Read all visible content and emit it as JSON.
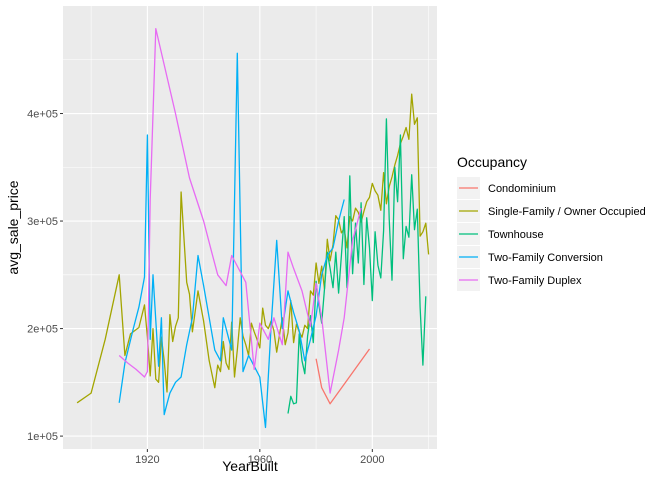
{
  "chart_data": {
    "type": "line",
    "xlabel": "YearBuilt",
    "ylabel": "avg_sale_price",
    "xlim": [
      1890,
      2023
    ],
    "ylim": [
      88000,
      500000
    ],
    "x_ticks": [
      1920,
      1960,
      2000
    ],
    "x_tick_labels": [
      "1920",
      "1960",
      "2000"
    ],
    "y_ticks": [
      100000,
      200000,
      300000,
      400000
    ],
    "y_tick_labels": [
      "1e+05",
      "2e+05",
      "3e+05",
      "4e+05"
    ],
    "grid": true,
    "legend_title": "Occupancy",
    "legend_position": "right",
    "series": [
      {
        "name": "Condominium",
        "color": "#F8766D",
        "x": [
          1980,
          1982,
          1985,
          1999
        ],
        "y": [
          172000,
          145000,
          130000,
          181000
        ]
      },
      {
        "name": "Single-Family / Owner Occupied",
        "color": "#A3A500",
        "x": [
          1895,
          1900,
          1905,
          1910,
          1912,
          1914,
          1917,
          1919,
          1920,
          1921,
          1922,
          1923,
          1924,
          1925,
          1926,
          1927,
          1928,
          1929,
          1930,
          1931,
          1932,
          1934,
          1935,
          1936,
          1938,
          1940,
          1942,
          1944,
          1945,
          1946,
          1947,
          1948,
          1949,
          1950,
          1951,
          1952,
          1953,
          1954,
          1955,
          1956,
          1957,
          1958,
          1959,
          1960,
          1961,
          1962,
          1963,
          1964,
          1965,
          1966,
          1967,
          1968,
          1969,
          1970,
          1971,
          1972,
          1973,
          1974,
          1975,
          1976,
          1977,
          1978,
          1979,
          1980,
          1981,
          1982,
          1983,
          1984,
          1985,
          1986,
          1987,
          1988,
          1989,
          1990,
          1991,
          1992,
          1993,
          1994,
          1995,
          1996,
          1997,
          1998,
          1999,
          2000,
          2001,
          2002,
          2003,
          2004,
          2005,
          2006,
          2007,
          2008,
          2009,
          2010,
          2011,
          2012,
          2013,
          2014,
          2015,
          2016,
          2017,
          2018,
          2019,
          2020
        ],
        "y": [
          131000,
          140000,
          190000,
          250000,
          175000,
          195000,
          201000,
          222000,
          192000,
          156000,
          200000,
          153000,
          150000,
          192000,
          170000,
          141000,
          213000,
          188000,
          202000,
          210000,
          327000,
          243000,
          232000,
          197000,
          235000,
          207000,
          170000,
          145000,
          166000,
          160000,
          188000,
          168000,
          162000,
          206000,
          155000,
          180000,
          210000,
          193000,
          185000,
          175000,
          205000,
          197000,
          190000,
          182000,
          219000,
          203000,
          200000,
          207000,
          198000,
          178000,
          194000,
          210000,
          185000,
          196000,
          226000,
          187000,
          204000,
          197000,
          192000,
          203000,
          200000,
          235000,
          231000,
          261000,
          242000,
          258000,
          237000,
          283000,
          263000,
          278000,
          305000,
          301000,
          289000,
          293000,
          275000,
          304000,
          300000,
          312000,
          308000,
          299000,
          309000,
          318000,
          322000,
          335000,
          328000,
          324000,
          310000,
          345000,
          316000,
          332000,
          341000,
          352000,
          361000,
          372000,
          379000,
          387000,
          376000,
          418000,
          390000,
          396000,
          286000,
          290000,
          298000,
          269000
        ]
      },
      {
        "name": "Townhouse",
        "color": "#00BF7D",
        "x": [
          1970,
          1971,
          1972,
          1973,
          1974,
          1975,
          1976,
          1977,
          1978,
          1979,
          1980,
          1981,
          1982,
          1983,
          1984,
          1985,
          1986,
          1987,
          1988,
          1989,
          1990,
          1991,
          1992,
          1993,
          1994,
          1995,
          1996,
          1997,
          1998,
          1999,
          2000,
          2001,
          2002,
          2003,
          2004,
          2005,
          2006,
          2007,
          2008,
          2009,
          2010,
          2011,
          2012,
          2013,
          2014,
          2015,
          2016,
          2017,
          2018,
          2019
        ],
        "y": [
          121000,
          137000,
          130000,
          131000,
          195000,
          170000,
          158000,
          193000,
          212000,
          187000,
          244000,
          222000,
          205000,
          237000,
          271000,
          256000,
          238000,
          271000,
          233000,
          268000,
          304000,
          238000,
          342000,
          251000,
          298000,
          261000,
          317000,
          241000,
          303000,
          275000,
          226000,
          290000,
          259000,
          247000,
          291000,
          395000,
          302000,
          245000,
          350000,
          318000,
          380000,
          265000,
          295000,
          285000,
          343000,
          292000,
          311000,
          220000,
          166000,
          230000
        ]
      },
      {
        "name": "Two-Family Conversion",
        "color": "#00B0F6",
        "x": [
          1910,
          1912,
          1915,
          1917,
          1919,
          1920,
          1921,
          1922,
          1924,
          1925,
          1926,
          1927,
          1928,
          1930,
          1932,
          1934,
          1936,
          1938,
          1940,
          1942,
          1944,
          1946,
          1947,
          1948,
          1950,
          1952,
          1954,
          1956,
          1958,
          1960,
          1962,
          1964,
          1966,
          1968,
          1970,
          1972,
          1974,
          1976,
          1978,
          1980,
          1982,
          1984,
          1986,
          1988,
          1990
        ],
        "y": [
          131000,
          168000,
          200000,
          220000,
          248000,
          380000,
          190000,
          250000,
          165000,
          210000,
          120000,
          130000,
          140000,
          150000,
          155000,
          185000,
          210000,
          268000,
          240000,
          210000,
          180000,
          170000,
          210000,
          200000,
          180000,
          456000,
          160000,
          175000,
          165000,
          155000,
          108000,
          202000,
          282000,
          200000,
          235000,
          215000,
          198000,
          170000,
          190000,
          212000,
          250000,
          268000,
          275000,
          300000,
          320000
        ]
      },
      {
        "name": "Two-Family Duplex",
        "color": "#E76BF3",
        "x": [
          1910,
          1913,
          1916,
          1919,
          1920,
          1921,
          1923,
          1930,
          1935,
          1940,
          1943,
          1945,
          1948,
          1950,
          1955,
          1958,
          1960,
          1963,
          1965,
          1968,
          1970,
          1972,
          1975,
          1978,
          1980,
          1982,
          1985,
          1988,
          1990,
          1993,
          1996
        ],
        "y": [
          175000,
          168000,
          162000,
          155000,
          160000,
          320000,
          479000,
          400000,
          340000,
          300000,
          270000,
          250000,
          240000,
          268000,
          243000,
          162000,
          205000,
          190000,
          210000,
          185000,
          271000,
          256000,
          235000,
          202000,
          242000,
          210000,
          140000,
          180000,
          210000,
          282000,
          312000
        ]
      }
    ]
  }
}
